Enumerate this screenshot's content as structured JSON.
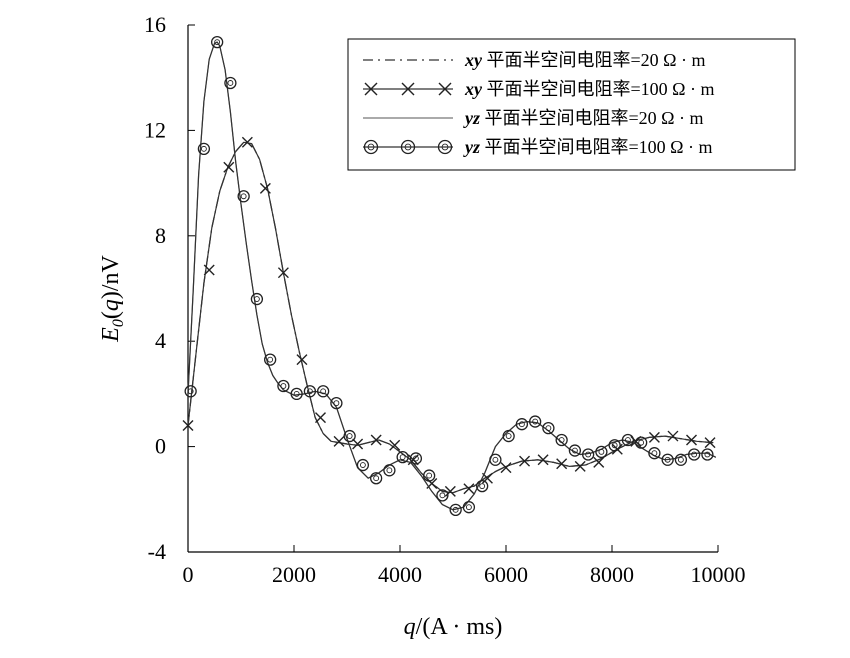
{
  "chart_data": {
    "type": "line",
    "title": "",
    "xlabel_parts": [
      "q",
      "/(A · ms)"
    ],
    "ylabel_parts": [
      "E",
      "0",
      "(",
      "q",
      ")/nV"
    ],
    "xlim": [
      0,
      10000
    ],
    "ylim": [
      -4,
      16
    ],
    "x_ticks": [
      0,
      2000,
      4000,
      6000,
      8000,
      10000
    ],
    "x_tick_labels": [
      "0",
      "2000",
      "4000",
      "6000",
      "8000",
      "10000"
    ],
    "y_ticks": [
      -4,
      0,
      4,
      8,
      12,
      16
    ],
    "y_tick_labels": [
      "-4",
      "0",
      "4",
      "8",
      "12",
      "16"
    ],
    "grid": false,
    "legend_position": "top-right",
    "series": [
      {
        "name_parts": [
          "xy",
          " 平面半空间电阻率=20 Ω · m"
        ],
        "style": "dashdot",
        "marker": "none",
        "color": "#333333",
        "x": [
          0,
          150,
          300,
          450,
          600,
          750,
          900,
          1050,
          1200,
          1350,
          1500,
          1650,
          1800,
          1950,
          2100,
          2250,
          2400,
          2550,
          2700,
          2850,
          3000,
          3200,
          3400,
          3600,
          3800,
          4000,
          4200,
          4400,
          4600,
          4800,
          5000,
          5200,
          5400,
          5600,
          5800,
          6000,
          6300,
          6600,
          6900,
          7200,
          7500,
          7800,
          8100,
          8400,
          8700,
          9000,
          9300,
          9600,
          9900
        ],
        "y": [
          0.8,
          3.5,
          6.2,
          8.3,
          9.7,
          10.6,
          11.2,
          11.55,
          11.5,
          10.9,
          9.8,
          8.3,
          6.6,
          5.0,
          3.6,
          2.3,
          1.1,
          0.5,
          0.2,
          0.15,
          0.1,
          0.05,
          0.15,
          0.25,
          0.1,
          -0.2,
          -0.5,
          -1.0,
          -1.4,
          -1.7,
          -1.75,
          -1.6,
          -1.5,
          -1.2,
          -0.95,
          -0.75,
          -0.55,
          -0.5,
          -0.6,
          -0.75,
          -0.7,
          -0.45,
          -0.1,
          0.2,
          0.35,
          0.4,
          0.3,
          0.2,
          0.15
        ]
      },
      {
        "name_parts": [
          "xy",
          " 平面半空间电阻率=100 Ω · m"
        ],
        "style": "solid",
        "marker": "x",
        "color": "#333333",
        "x": [
          0,
          150,
          300,
          450,
          600,
          750,
          900,
          1050,
          1200,
          1350,
          1500,
          1650,
          1800,
          1950,
          2100,
          2250,
          2400,
          2550,
          2700,
          2850,
          3000,
          3200,
          3400,
          3600,
          3800,
          4000,
          4200,
          4400,
          4600,
          4800,
          5000,
          5200,
          5400,
          5600,
          5800,
          6000,
          6300,
          6600,
          6900,
          7200,
          7500,
          7800,
          8100,
          8400,
          8700,
          9000,
          9300,
          9600,
          9900
        ],
        "y": [
          0.8,
          3.5,
          6.2,
          8.3,
          9.7,
          10.6,
          11.2,
          11.55,
          11.5,
          10.9,
          9.8,
          8.3,
          6.6,
          5.0,
          3.6,
          2.3,
          1.1,
          0.5,
          0.2,
          0.15,
          0.1,
          0.05,
          0.15,
          0.25,
          0.1,
          -0.2,
          -0.5,
          -1.0,
          -1.4,
          -1.7,
          -1.75,
          -1.6,
          -1.5,
          -1.2,
          -0.95,
          -0.75,
          -0.55,
          -0.5,
          -0.6,
          -0.75,
          -0.7,
          -0.45,
          -0.1,
          0.2,
          0.35,
          0.4,
          0.3,
          0.2,
          0.15
        ],
        "marker_x": [
          0,
          400,
          770,
          1120,
          1460,
          1800,
          2150,
          2500,
          2850,
          3200,
          3550,
          3900,
          4250,
          4600,
          4950,
          5300,
          5650,
          6000,
          6350,
          6700,
          7050,
          7400,
          7750,
          8100,
          8450,
          8800,
          9150,
          9500,
          9850
        ],
        "marker_y": [
          0.8,
          6.7,
          10.6,
          11.55,
          9.8,
          6.6,
          3.3,
          1.1,
          0.2,
          0.1,
          0.25,
          0.05,
          -0.5,
          -1.4,
          -1.7,
          -1.6,
          -1.2,
          -0.8,
          -0.55,
          -0.5,
          -0.65,
          -0.75,
          -0.6,
          -0.1,
          0.2,
          0.35,
          0.4,
          0.25,
          0.15
        ]
      },
      {
        "name_parts": [
          "yz",
          " 平面半空间电阻率=20 Ω · m"
        ],
        "style": "solid",
        "marker": "none",
        "color": "#777777",
        "x": [
          0,
          100,
          200,
          300,
          400,
          500,
          550,
          600,
          700,
          800,
          900,
          1000,
          1100,
          1200,
          1300,
          1400,
          1500,
          1600,
          1700,
          1800,
          2000,
          2200,
          2400,
          2600,
          2800,
          3000,
          3200,
          3400,
          3600,
          3800,
          4000,
          4200,
          4400,
          4600,
          4800,
          5000,
          5200,
          5400,
          5600,
          5800,
          6000,
          6200,
          6400,
          6600,
          6800,
          7000,
          7200,
          7400,
          7600,
          7800,
          8000,
          8200,
          8400,
          8600,
          8800,
          9000,
          9200,
          9400,
          9600,
          9800,
          9950
        ],
        "y": [
          2.0,
          6.0,
          10.3,
          13.1,
          14.7,
          15.3,
          15.35,
          15.2,
          14.3,
          12.7,
          10.8,
          9.2,
          7.7,
          6.3,
          5.0,
          3.9,
          3.2,
          2.7,
          2.4,
          2.15,
          1.95,
          2.0,
          2.1,
          2.0,
          1.5,
          0.3,
          -0.8,
          -1.2,
          -1.0,
          -0.7,
          -0.5,
          -0.6,
          -1.1,
          -1.7,
          -2.2,
          -2.4,
          -2.3,
          -1.8,
          -1.0,
          0.0,
          0.5,
          0.85,
          0.95,
          0.9,
          0.6,
          0.25,
          -0.1,
          -0.3,
          -0.25,
          -0.1,
          0.15,
          0.25,
          0.15,
          -0.1,
          -0.35,
          -0.5,
          -0.45,
          -0.3,
          -0.25,
          -0.25,
          -0.4
        ]
      },
      {
        "name_parts": [
          "yz",
          " 平面半空间电阻率=100 Ω · m"
        ],
        "style": "solid",
        "marker": "o",
        "color": "#333333",
        "x": [
          0,
          100,
          200,
          300,
          400,
          500,
          550,
          600,
          700,
          800,
          900,
          1000,
          1100,
          1200,
          1300,
          1400,
          1500,
          1600,
          1700,
          1800,
          2000,
          2200,
          2400,
          2600,
          2800,
          3000,
          3200,
          3400,
          3600,
          3800,
          4000,
          4200,
          4400,
          4600,
          4800,
          5000,
          5200,
          5400,
          5600,
          5800,
          6000,
          6200,
          6400,
          6600,
          6800,
          7000,
          7200,
          7400,
          7600,
          7800,
          8000,
          8200,
          8400,
          8600,
          8800,
          9000,
          9200,
          9400,
          9600,
          9800,
          9950
        ],
        "y": [
          2.0,
          6.0,
          10.3,
          13.1,
          14.7,
          15.3,
          15.35,
          15.2,
          14.3,
          12.7,
          10.8,
          9.2,
          7.7,
          6.3,
          5.0,
          3.9,
          3.2,
          2.7,
          2.4,
          2.15,
          1.95,
          2.0,
          2.1,
          2.0,
          1.5,
          0.3,
          -0.8,
          -1.2,
          -1.0,
          -0.7,
          -0.5,
          -0.6,
          -1.1,
          -1.7,
          -2.2,
          -2.4,
          -2.3,
          -1.8,
          -1.0,
          0.0,
          0.5,
          0.85,
          0.95,
          0.9,
          0.6,
          0.25,
          -0.1,
          -0.3,
          -0.25,
          -0.1,
          0.15,
          0.25,
          0.15,
          -0.1,
          -0.35,
          -0.5,
          -0.45,
          -0.3,
          -0.25,
          -0.25,
          -0.4
        ],
        "marker_x": [
          50,
          300,
          550,
          800,
          1050,
          1300,
          1550,
          1800,
          2050,
          2300,
          2550,
          2800,
          3050,
          3300,
          3550,
          3800,
          4050,
          4300,
          4550,
          4800,
          5050,
          5300,
          5550,
          5800,
          6050,
          6300,
          6550,
          6800,
          7050,
          7300,
          7550,
          7800,
          8050,
          8300,
          8550,
          8800,
          9050,
          9300,
          9550,
          9800
        ],
        "marker_y": [
          2.1,
          11.3,
          15.35,
          13.8,
          9.5,
          5.6,
          3.3,
          2.3,
          2.0,
          2.1,
          2.1,
          1.65,
          0.4,
          -0.7,
          -1.2,
          -0.9,
          -0.4,
          -0.45,
          -1.1,
          -1.85,
          -2.4,
          -2.3,
          -1.5,
          -0.5,
          0.4,
          0.85,
          0.95,
          0.7,
          0.25,
          -0.15,
          -0.3,
          -0.2,
          0.05,
          0.25,
          0.15,
          -0.25,
          -0.5,
          -0.5,
          -0.3,
          -0.3
        ]
      }
    ]
  }
}
